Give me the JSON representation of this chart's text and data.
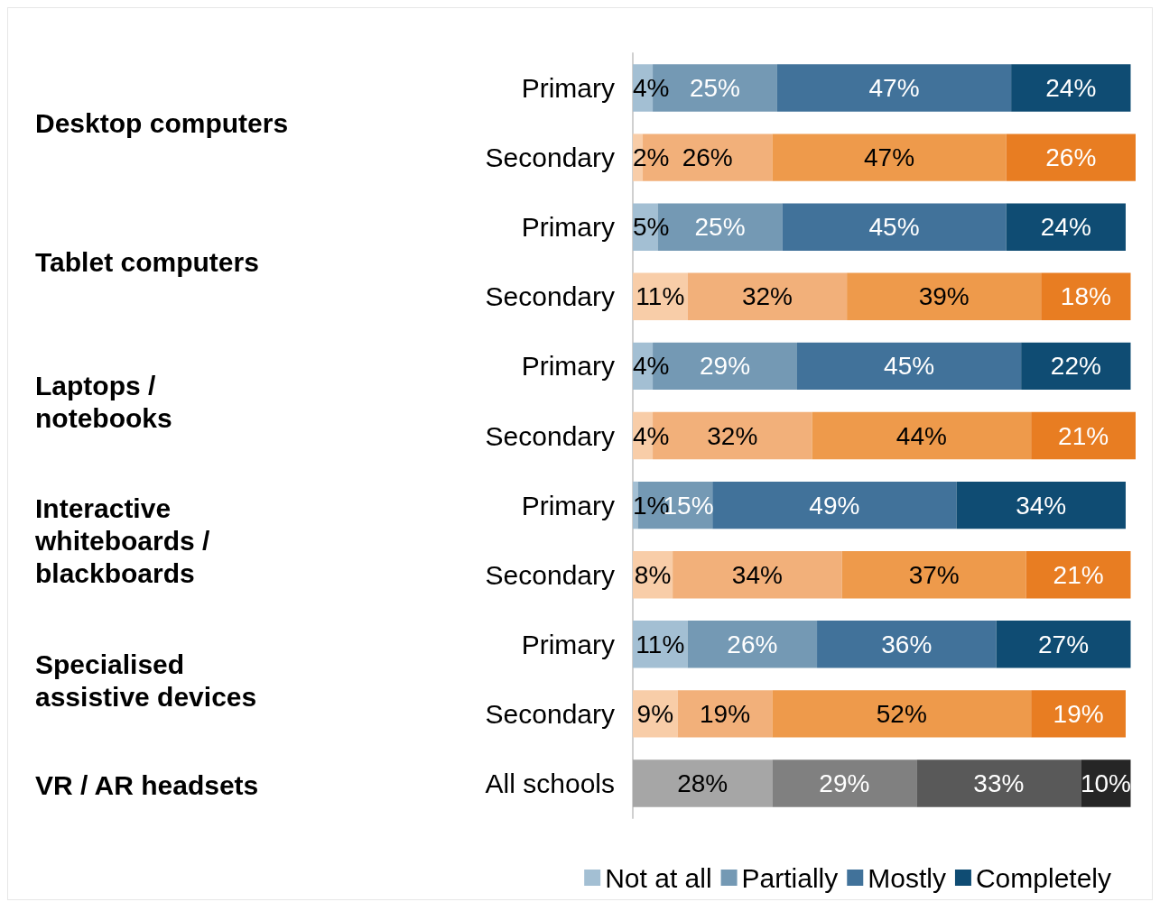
{
  "chart_data": {
    "type": "bar",
    "orientation": "horizontal",
    "stacked": true,
    "categories": [
      "Primary",
      "Secondary",
      "Primary",
      "Secondary",
      "Primary",
      "Secondary",
      "Primary",
      "Secondary",
      "Primary",
      "Secondary",
      "All schools"
    ],
    "annotations": [
      "Desktop computers",
      "Tablet computers",
      "Laptops /\nnotebooks",
      "Interactive\nwhiteboards /\nblackboards",
      "Specialised\nassistive devices",
      "VR / AR headsets"
    ],
    "series": [
      {
        "name": "Not at all",
        "color": "#a3bfd3",
        "colors": [
          "#a3bfd3",
          "#f8cda8",
          "#a3bfd3",
          "#f8cda8",
          "#a3bfd3",
          "#f8cda8",
          "#a3bfd3",
          "#f8cda8",
          "#a3bfd3",
          "#f8cda8",
          "#a6a6a6"
        ],
        "values": [
          4,
          2,
          5,
          11,
          4,
          4,
          1,
          8,
          11,
          9,
          28
        ],
        "value_labels": [
          "4%",
          "2%",
          "5%",
          "11%",
          "4%",
          "4%",
          "1%",
          "8%",
          "11%",
          "9%",
          "28%"
        ]
      },
      {
        "name": "Partially",
        "color": "#7499b4",
        "colors": [
          "#7499b4",
          "#f2b07a",
          "#7499b4",
          "#f2b07a",
          "#7499b4",
          "#f2b07a",
          "#7499b4",
          "#f2b07a",
          "#7499b4",
          "#f2b07a",
          "#808080"
        ],
        "values": [
          25,
          26,
          25,
          32,
          29,
          32,
          15,
          34,
          26,
          19,
          29
        ],
        "value_labels": [
          "25%",
          "26%",
          "25%",
          "32%",
          "29%",
          "32%",
          "15%",
          "34%",
          "26%",
          "19%",
          "29%"
        ]
      },
      {
        "name": "Mostly",
        "color": "#41729a",
        "colors": [
          "#41729a",
          "#ee9a4b",
          "#41729a",
          "#ee9a4b",
          "#41729a",
          "#ee9a4b",
          "#41729a",
          "#ee9a4b",
          "#41729a",
          "#ee9a4b",
          "#595959"
        ],
        "values": [
          47,
          47,
          45,
          39,
          45,
          44,
          49,
          37,
          36,
          52,
          33
        ],
        "value_labels": [
          "47%",
          "47%",
          "45%",
          "39%",
          "45%",
          "44%",
          "49%",
          "37%",
          "36%",
          "52%",
          "33%"
        ]
      },
      {
        "name": "Completely",
        "color": "#0f4c73",
        "colors": [
          "#0f4c73",
          "#e87d22",
          "#0f4c73",
          "#e87d22",
          "#0f4c73",
          "#e87d22",
          "#0f4c73",
          "#e87d22",
          "#0f4c73",
          "#e87d22",
          "#262626"
        ],
        "values": [
          24,
          26,
          24,
          18,
          22,
          21,
          34,
          21,
          27,
          19,
          10
        ],
        "value_labels": [
          "24%",
          "26%",
          "24%",
          "18%",
          "22%",
          "21%",
          "34%",
          "21%",
          "27%",
          "19%",
          "10%"
        ]
      }
    ],
    "legend": "bottom"
  }
}
